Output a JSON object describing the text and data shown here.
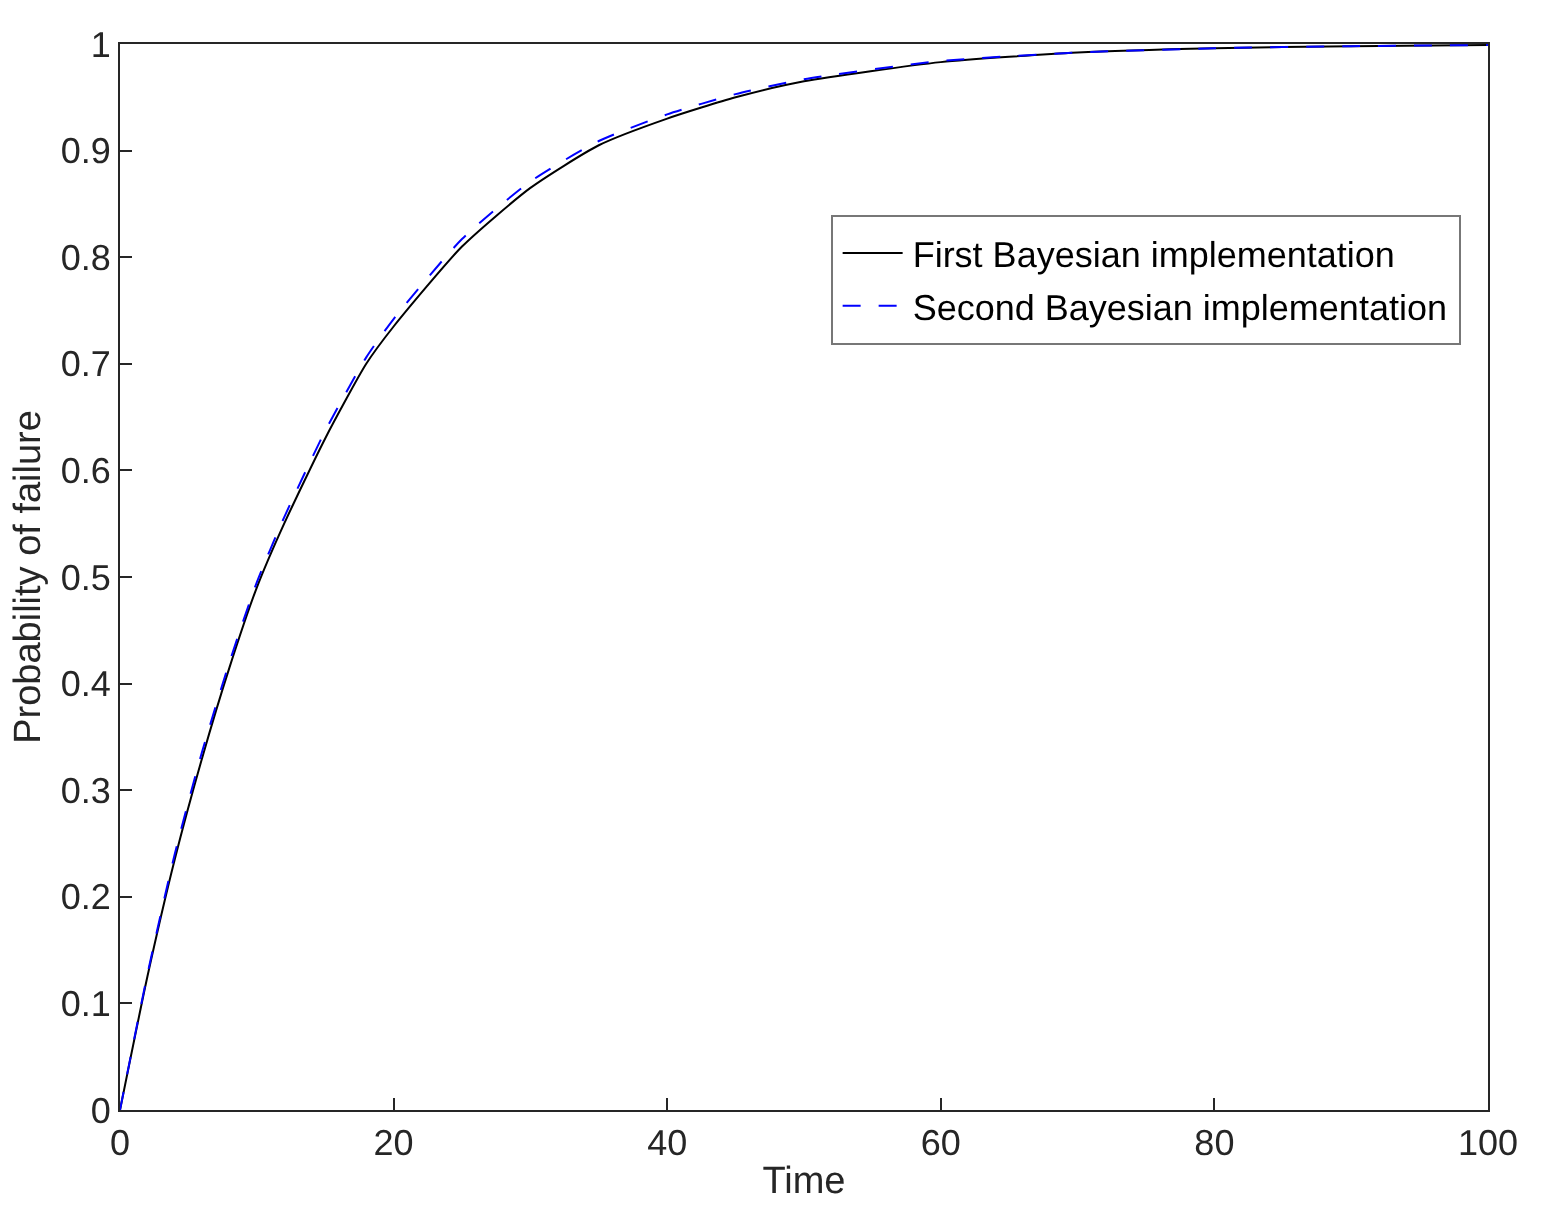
{
  "chart_data": {
    "type": "line",
    "xlabel": "Time",
    "ylabel": "Probability of failure",
    "x": [
      0,
      2,
      4,
      6,
      8,
      10,
      12,
      15,
      18,
      20,
      25,
      30,
      35,
      40,
      45,
      50,
      60,
      70,
      80,
      90,
      100
    ],
    "series": [
      {
        "name": "First Bayesian implementation",
        "color": "#000000",
        "line_style": "solid",
        "values": [
          0,
          0.125,
          0.235,
          0.33,
          0.415,
          0.49,
          0.55,
          0.63,
          0.7,
          0.735,
          0.81,
          0.865,
          0.905,
          0.93,
          0.95,
          0.965,
          0.983,
          0.992,
          0.996,
          0.998,
          0.999
        ]
      },
      {
        "name": "Second Bayesian implementation",
        "color": "#0000ff",
        "line_style": "dashed",
        "values": [
          0,
          0.127,
          0.24,
          0.336,
          0.42,
          0.495,
          0.556,
          0.637,
          0.706,
          0.742,
          0.817,
          0.871,
          0.909,
          0.934,
          0.953,
          0.967,
          0.984,
          0.992,
          0.996,
          0.998,
          0.999
        ]
      }
    ],
    "xlim": [
      0,
      100
    ],
    "xticks": [
      0,
      20,
      40,
      60,
      80,
      100
    ],
    "ylim": [
      0,
      1
    ],
    "yticks": [
      0,
      0.1,
      0.2,
      0.3,
      0.4,
      0.5,
      0.6,
      0.7,
      0.8,
      0.9,
      1
    ],
    "grid": false,
    "legend": "top right",
    "marker": "none"
  }
}
